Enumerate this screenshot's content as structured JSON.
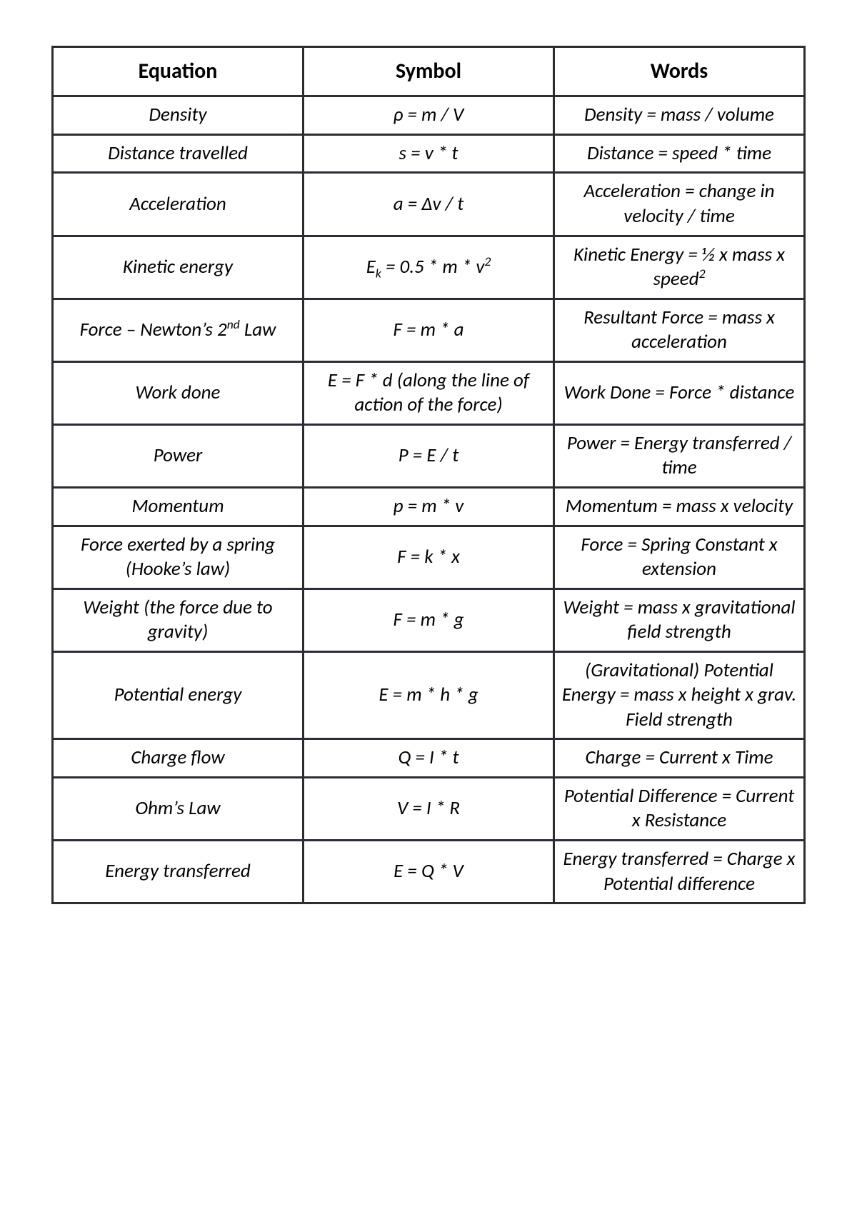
{
  "table": {
    "border_color": "#2b2c34",
    "background_color": "#ffffff",
    "text_color": "#000000",
    "header_font_weight": 700,
    "body_font_style": "italic",
    "columns": [
      "Equation",
      "Symbol",
      "Words"
    ],
    "rows": [
      {
        "equation": "Density",
        "symbol": "ρ = m / V",
        "words": "Density = mass / volume"
      },
      {
        "equation": "Distance travelled",
        "symbol": "s = v * t",
        "words": "Distance = speed * time"
      },
      {
        "equation": "Acceleration",
        "symbol": "a = Δv / t",
        "words": "Acceleration = change in velocity / time"
      },
      {
        "equation_html": "Kinetic energy",
        "symbol_html": "E<sub>k</sub> = 0.5 * m * v<sup>2</sup>",
        "words_html": "Kinetic Energy = ½ x mass x speed<sup>2</sup>"
      },
      {
        "equation_html": "Force – Newton’s 2<sup>nd</sup> Law",
        "symbol": "F = m * a",
        "words": "Resultant Force = mass x acceleration"
      },
      {
        "equation": "Work done",
        "symbol": "E = F * d (along the line of action of the force)",
        "words": "Work Done = Force * distance"
      },
      {
        "equation": "Power",
        "symbol": "P = E / t",
        "words": "Power = Energy transferred / time"
      },
      {
        "equation": "Momentum",
        "symbol": "p = m * v",
        "words": "Momentum = mass x velocity"
      },
      {
        "equation": "Force exerted by a spring (Hooke’s law)",
        "symbol": "F = k * x",
        "words": "Force = Spring Constant x extension"
      },
      {
        "equation": "Weight (the force due to gravity)",
        "symbol": "F = m * g",
        "words": "Weight = mass x gravitational field strength"
      },
      {
        "equation": "Potential energy",
        "symbol": "E = m * h * g",
        "words": "(Gravitational) Potential Energy = mass x height x grav. Field strength"
      },
      {
        "equation": "Charge flow",
        "symbol": "Q = I * t",
        "words": "Charge = Current x Time"
      },
      {
        "equation": "Ohm’s Law",
        "symbol": "V = I * R",
        "words": "Potential Difference = Current x Resistance"
      },
      {
        "equation": "Energy transferred",
        "symbol": "E = Q * V",
        "words": "Energy transferred = Charge x Potential difference"
      }
    ]
  }
}
